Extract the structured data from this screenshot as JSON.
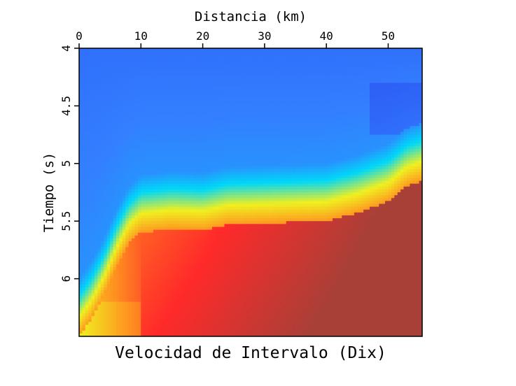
{
  "chart_data": {
    "type": "heatmap",
    "title": "Velocidad de Intervalo (Dix)",
    "xlabel": "Distancia (km)",
    "ylabel": "Tiempo (s)",
    "x_ticks": [
      "0",
      "10",
      "20",
      "30",
      "40",
      "50"
    ],
    "y_ticks": [
      "4",
      "4.5",
      "5",
      "5.5",
      "6"
    ],
    "xlim": [
      0,
      55.5
    ],
    "ylim": [
      4,
      6.5
    ],
    "x_axis_position": "top",
    "y_axis_inverted": true,
    "colormap": "jet",
    "colormap_stops": [
      "#2a48f0",
      "#3380ff",
      "#00d8f8",
      "#f0f020",
      "#ff9020",
      "#ff2a2a",
      "#a84038"
    ],
    "description_values": {
      "boundary_time_s": [
        [
          0,
          6.45
        ],
        [
          2,
          6.3
        ],
        [
          4,
          6.1
        ],
        [
          6,
          5.85
        ],
        [
          8,
          5.65
        ],
        [
          10,
          5.55
        ],
        [
          15,
          5.52
        ],
        [
          20,
          5.53
        ],
        [
          24,
          5.48
        ],
        [
          30,
          5.47
        ],
        [
          35,
          5.46
        ],
        [
          40,
          5.45
        ],
        [
          45,
          5.38
        ],
        [
          50,
          5.28
        ],
        [
          53,
          5.15
        ],
        [
          55.5,
          5.1
        ]
      ]
    }
  }
}
